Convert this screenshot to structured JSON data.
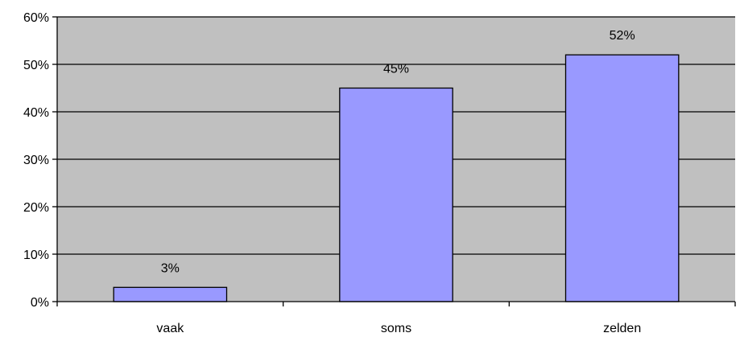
{
  "chart_data": {
    "type": "bar",
    "categories": [
      "vaak",
      "soms",
      "zelden"
    ],
    "values": [
      3,
      45,
      52
    ],
    "data_labels": [
      "3%",
      "45%",
      "52%"
    ],
    "ylim": [
      0,
      60
    ],
    "yticks": [
      0,
      10,
      20,
      30,
      40,
      50,
      60
    ],
    "ytick_labels": [
      "0%",
      "10%",
      "20%",
      "30%",
      "40%",
      "50%",
      "60%"
    ],
    "grid": true,
    "legend": "none",
    "colors": {
      "bar_fill": "#9999ff",
      "bar_stroke": "#000000",
      "plot_background": "#c0c0c0",
      "gridline": "#000000"
    }
  }
}
